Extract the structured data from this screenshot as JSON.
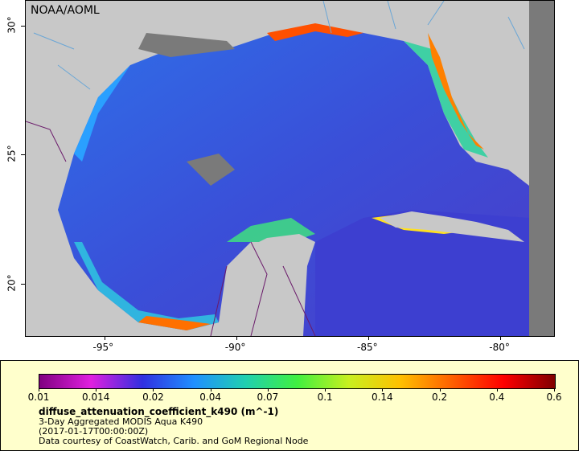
{
  "map": {
    "credit": "NOAA/AOML",
    "lon_ticks": [
      {
        "label": "-95°",
        "value": -95
      },
      {
        "label": "-90°",
        "value": -90
      },
      {
        "label": "-85°",
        "value": -85
      },
      {
        "label": "-80°",
        "value": -80
      }
    ],
    "lat_ticks": [
      {
        "label": "30°",
        "value": 30
      },
      {
        "label": "25°",
        "value": 25
      },
      {
        "label": "20°",
        "value": 20
      }
    ],
    "colors": {
      "land": "#c8c8c8",
      "nodata": "#7a7a7a",
      "deep_water": "#3a4fd8",
      "rivers": "#6aa6d6",
      "borders": "#6a1a6a"
    }
  },
  "legend": {
    "variable": "diffuse_attenuation_coefficient_k490 (m^-1)",
    "product": "3-Day Aggregated MODIS Aqua K490",
    "time": "(2017-01-17T00:00:00Z)",
    "courtesy": "Data courtesy of CoastWatch, Carib. and GoM Regional Node",
    "ticks": [
      "0.01",
      "0.014",
      "0.02",
      "0.04",
      "0.07",
      "0.1",
      "0.14",
      "0.2",
      "0.4",
      "0.6"
    ],
    "gradient": [
      "#800080",
      "#e020e0",
      "#3030e0",
      "#2090ff",
      "#20d0b0",
      "#40f040",
      "#c8f020",
      "#ffc000",
      "#ff6000",
      "#ff0000",
      "#800000"
    ]
  }
}
